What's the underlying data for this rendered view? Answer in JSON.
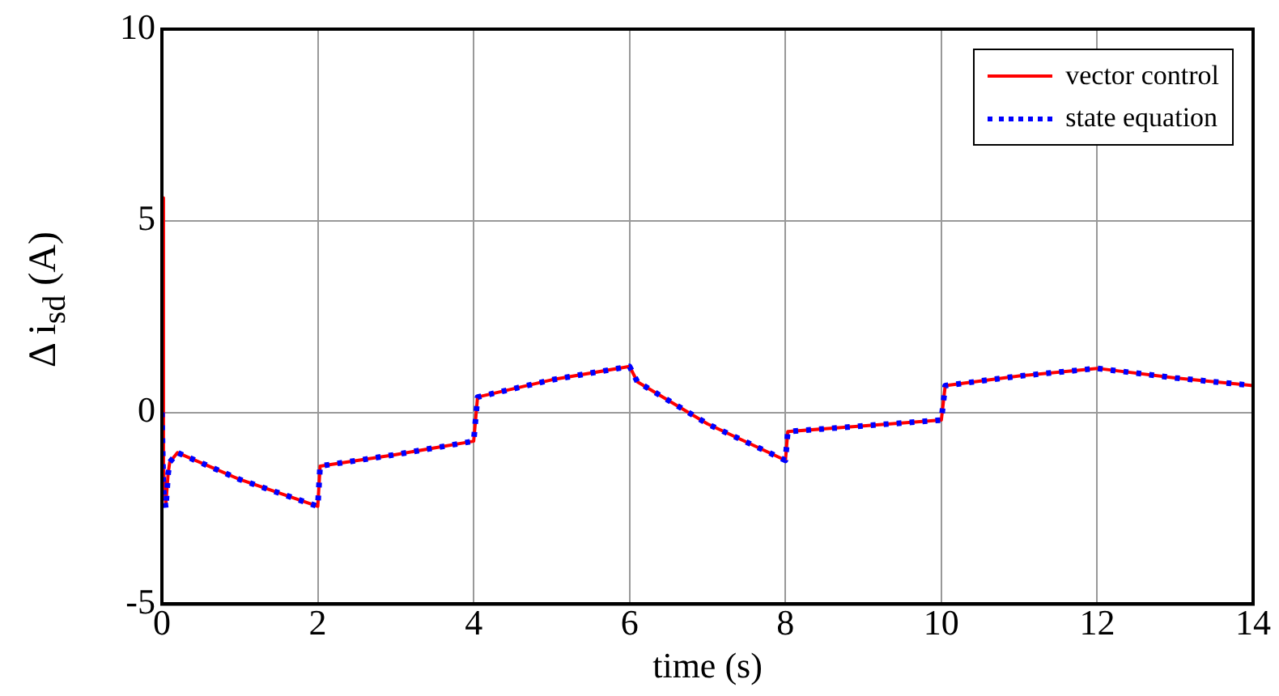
{
  "chart_data": {
    "type": "line",
    "xlabel": "time (s)",
    "ylabel": "Δ i$_{sd}$ (A)",
    "xlim": [
      0,
      14
    ],
    "xticks": [
      0,
      2,
      4,
      6,
      8,
      10,
      12,
      14
    ],
    "ylim": [
      -5,
      10
    ],
    "yticks": [
      -5,
      0,
      5,
      10
    ],
    "grid": true,
    "legend": "top right",
    "series": [
      {
        "name": "vector control",
        "color": "#ff0000",
        "line_style": "solid",
        "x": [
          0,
          0.02,
          0.05,
          0.08,
          0.1,
          0.2,
          1,
          2,
          2.03,
          3,
          4,
          4.05,
          5,
          6,
          6.1,
          7,
          8,
          8.03,
          9,
          10,
          10.05,
          11,
          12,
          13,
          14
        ],
        "values": [
          5.6,
          -1.5,
          -2.4,
          -1.6,
          -1.3,
          -1.05,
          -1.75,
          -2.45,
          -1.4,
          -1.1,
          -0.75,
          0.4,
          0.85,
          1.2,
          0.8,
          -0.3,
          -1.25,
          -0.5,
          -0.35,
          -0.2,
          0.7,
          0.95,
          1.15,
          0.9,
          0.7
        ]
      },
      {
        "name": "state equation",
        "color": "#0000ff",
        "line_style": "dotted",
        "x": [
          0,
          0.02,
          0.05,
          0.08,
          0.1,
          0.2,
          1,
          2,
          2.03,
          3,
          4,
          4.05,
          5,
          6,
          6.1,
          7,
          8,
          8.03,
          9,
          10,
          10.05,
          11,
          12,
          13,
          14
        ],
        "values": [
          0,
          -2.0,
          -2.5,
          -1.6,
          -1.3,
          -1.05,
          -1.75,
          -2.45,
          -1.4,
          -1.1,
          -0.75,
          0.4,
          0.85,
          1.2,
          0.8,
          -0.3,
          -1.25,
          -0.5,
          -0.35,
          -0.2,
          0.7,
          0.95,
          1.15,
          0.9,
          0.7
        ]
      }
    ]
  }
}
